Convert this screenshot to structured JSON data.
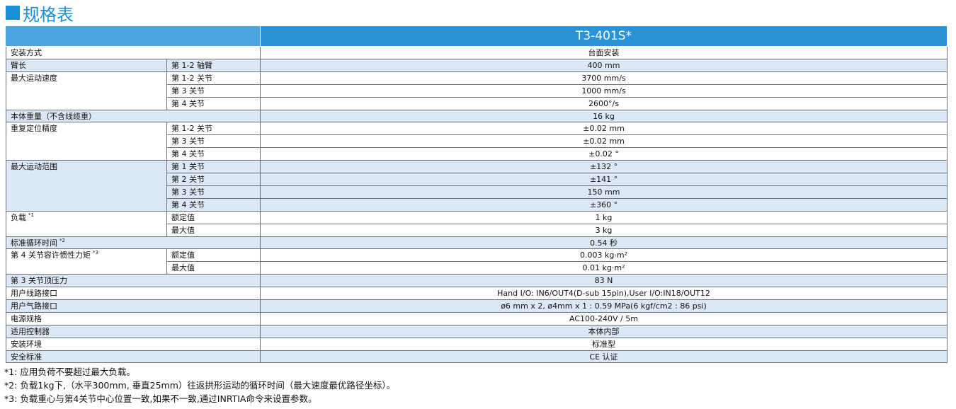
{
  "header": {
    "title": "规格表",
    "model": "T3-401S*"
  },
  "table": {
    "groups": [
      {
        "label": "安装方式",
        "value": "台面安装"
      },
      {
        "label": "臂长",
        "rows": [
          [
            "第 1-2 轴臂",
            "400 mm"
          ]
        ]
      },
      {
        "label": "最大运动速度",
        "rows": [
          [
            "第 1-2 关节",
            "3700 mm/s"
          ],
          [
            "第 3 关节",
            "1000 mm/s"
          ],
          [
            "第 4 关节",
            "2600°/s"
          ]
        ]
      },
      {
        "label": "本体重量（不含线缆重）",
        "value": "16 kg"
      },
      {
        "label": "重复定位精度",
        "rows": [
          [
            "第 1-2 关节",
            "±0.02 mm"
          ],
          [
            "第 3 关节",
            "±0.02 mm"
          ],
          [
            "第 4 关节",
            "±0.02 °"
          ]
        ]
      },
      {
        "label": "最大运动范围",
        "rows": [
          [
            "第 1 关节",
            "±132 °"
          ],
          [
            "第 2 关节",
            "±141 °"
          ],
          [
            "第 3 关节",
            "150 mm"
          ],
          [
            "第 4 关节",
            "±360 °"
          ]
        ]
      },
      {
        "label": "负载",
        "note": "*1",
        "rows": [
          [
            "额定值",
            "1 kg"
          ],
          [
            "最大值",
            "3 kg"
          ]
        ]
      },
      {
        "label": "标准循环时间",
        "note": "*2",
        "value": "0.54 秒"
      },
      {
        "label": "第 4 关节容许惯性力矩",
        "note": "*3",
        "rows": [
          [
            "额定值",
            "0.003 kg·m²"
          ],
          [
            "最大值",
            "0.01 kg·m²"
          ]
        ]
      },
      {
        "label": "第 3 关节顶压力",
        "value": "83 N"
      },
      {
        "label": "用户线路接口",
        "value": "Hand I/O: IN6/OUT4(D-sub 15pin),User I/O:IN18/OUT12"
      },
      {
        "label": "用户气路接口",
        "value": "ø6 mm x 2, ø4mm x 1 : 0.59 MPa(6 kgf/cm2 : 86 psi)"
      },
      {
        "label": "电源规格",
        "value": "AC100-240V / 5m"
      },
      {
        "label": "适用控制器",
        "value": "本体内部"
      },
      {
        "label": "安装环境",
        "value": "标准型"
      },
      {
        "label": "安全标准",
        "value": "CE 认证"
      }
    ]
  },
  "notes": [
    "*1: 应用负荷不要超过最大负载。",
    "*2: 负载1kg下,（水平300mm, 垂直25mm）往返拱形运动的循环时间（最大速度最优路径坐标）。",
    "*3: 负载重心与第4关节中心位置一致,如果不一致,通过INRTIA命令来设置参数。"
  ]
}
